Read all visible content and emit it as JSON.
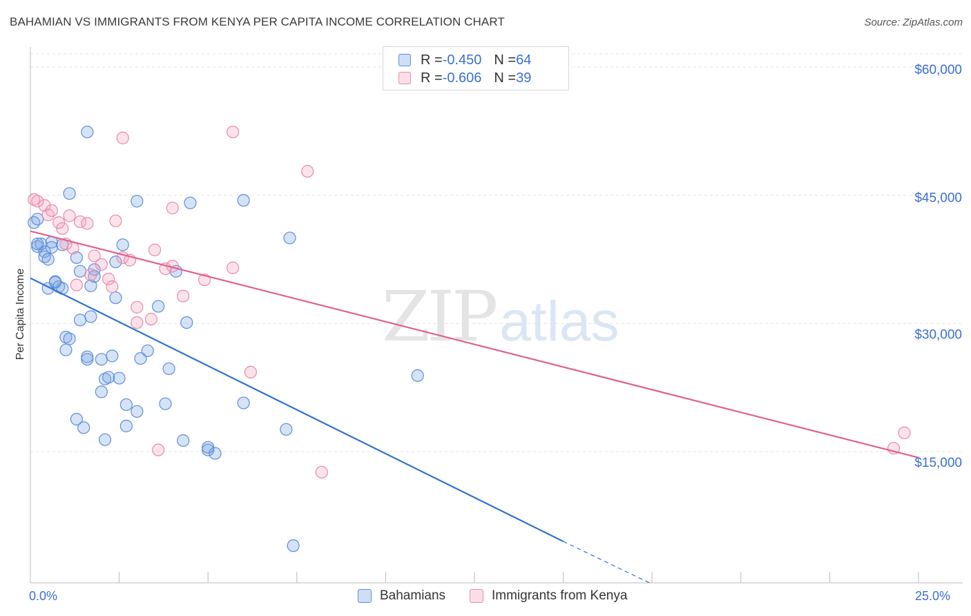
{
  "header": {
    "title": "BAHAMIAN VS IMMIGRANTS FROM KENYA PER CAPITA INCOME CORRELATION CHART",
    "source": "Source: ZipAtlas.com"
  },
  "watermark": {
    "zip": "ZIP",
    "atlas": "atlas"
  },
  "stats": [
    {
      "r_label": "R = ",
      "r_value": "-0.450",
      "n_label": "N = ",
      "n_value": "64"
    },
    {
      "r_label": "R = ",
      "r_value": "-0.606",
      "n_label": "N = ",
      "n_value": "39"
    }
  ],
  "legend": {
    "series0": "Bahamians",
    "series1": "Immigrants from Kenya"
  },
  "axis": {
    "x_min_label": "0.0%",
    "x_max_label": "25.0%"
  },
  "colors": {
    "blue": "#5b8fd8",
    "blue_fill": "rgba(120,160,225,0.30)",
    "blue_line": "#2f74d0",
    "pink": "#e88aa8",
    "pink_fill": "rgba(245,160,190,0.30)",
    "pink_line": "#e0608e",
    "tick_text": "#3a6fd0"
  },
  "chart_data": {
    "type": "scatter",
    "title": "BAHAMIAN VS IMMIGRANTS FROM KENYA PER CAPITA INCOME CORRELATION CHART",
    "xlabel": "",
    "ylabel": "Per Capita Income",
    "xlim": [
      0,
      25
    ],
    "ylim": [
      0,
      62000
    ],
    "y_ticks": [
      15000,
      30000,
      45000,
      60000
    ],
    "y_tick_labels": [
      "$15,000",
      "$30,000",
      "$45,000",
      "$60,000"
    ],
    "grid": true,
    "legend_position": "bottom",
    "series": [
      {
        "name": "Bahamians",
        "points": [
          [
            0.1,
            41800
          ],
          [
            0.2,
            42200
          ],
          [
            0.3,
            39300
          ],
          [
            0.2,
            39000
          ],
          [
            0.4,
            38400
          ],
          [
            0.4,
            37800
          ],
          [
            0.5,
            37500
          ],
          [
            0.6,
            39500
          ],
          [
            0.5,
            34100
          ],
          [
            0.7,
            34800
          ],
          [
            0.8,
            34300
          ],
          [
            0.9,
            34100
          ],
          [
            0.6,
            38900
          ],
          [
            0.9,
            39200
          ],
          [
            1.1,
            45200
          ],
          [
            1.6,
            52400
          ],
          [
            1.3,
            37700
          ],
          [
            1.4,
            36100
          ],
          [
            1.7,
            34400
          ],
          [
            1.8,
            36300
          ],
          [
            1.0,
            28400
          ],
          [
            1.1,
            28200
          ],
          [
            1.6,
            25800
          ],
          [
            1.6,
            26100
          ],
          [
            1.0,
            26900
          ],
          [
            1.4,
            30400
          ],
          [
            1.7,
            30800
          ],
          [
            2.0,
            25800
          ],
          [
            2.3,
            26200
          ],
          [
            2.1,
            23500
          ],
          [
            2.2,
            23700
          ],
          [
            2.5,
            23600
          ],
          [
            2.0,
            22000
          ],
          [
            2.7,
            20500
          ],
          [
            3.0,
            19700
          ],
          [
            1.3,
            18800
          ],
          [
            1.5,
            17800
          ],
          [
            2.7,
            18000
          ],
          [
            2.1,
            16400
          ],
          [
            2.4,
            33000
          ],
          [
            2.4,
            37200
          ],
          [
            2.6,
            39200
          ],
          [
            3.0,
            44300
          ],
          [
            3.1,
            25900
          ],
          [
            3.3,
            26800
          ],
          [
            3.6,
            32000
          ],
          [
            3.9,
            24700
          ],
          [
            3.8,
            20600
          ],
          [
            4.3,
            16300
          ],
          [
            4.4,
            30100
          ],
          [
            4.5,
            44100
          ],
          [
            5.0,
            15200
          ],
          [
            5.0,
            15500
          ],
          [
            5.2,
            14800
          ],
          [
            6.0,
            44400
          ],
          [
            6.0,
            20700
          ],
          [
            7.3,
            40000
          ],
          [
            7.2,
            17600
          ],
          [
            7.4,
            4000
          ],
          [
            10.9,
            23900
          ],
          [
            0.2,
            39300
          ],
          [
            0.7,
            34900
          ],
          [
            1.8,
            35500
          ],
          [
            4.1,
            36100
          ]
        ],
        "trend": {
          "x": [
            0,
            15
          ],
          "y": [
            35300,
            4500
          ],
          "dashed_extension_x": [
            15,
            17.5
          ],
          "dashed_extension_y": [
            4500,
            -500
          ]
        }
      },
      {
        "name": "Immigrants from Kenya",
        "points": [
          [
            0.1,
            44500
          ],
          [
            0.2,
            44300
          ],
          [
            0.4,
            43800
          ],
          [
            0.5,
            42700
          ],
          [
            0.6,
            43200
          ],
          [
            0.8,
            41800
          ],
          [
            0.9,
            41100
          ],
          [
            1.0,
            39300
          ],
          [
            1.2,
            38800
          ],
          [
            1.1,
            42600
          ],
          [
            1.4,
            41900
          ],
          [
            1.6,
            41700
          ],
          [
            1.3,
            34500
          ],
          [
            1.7,
            35700
          ],
          [
            1.8,
            37900
          ],
          [
            2.0,
            36900
          ],
          [
            2.2,
            35200
          ],
          [
            2.3,
            34300
          ],
          [
            2.4,
            42000
          ],
          [
            2.6,
            37700
          ],
          [
            2.8,
            37400
          ],
          [
            2.6,
            51700
          ],
          [
            3.0,
            30100
          ],
          [
            3.0,
            31900
          ],
          [
            3.4,
            30500
          ],
          [
            3.5,
            38600
          ],
          [
            3.8,
            36400
          ],
          [
            4.0,
            36700
          ],
          [
            4.0,
            43500
          ],
          [
            4.3,
            33200
          ],
          [
            4.9,
            35100
          ],
          [
            5.7,
            36500
          ],
          [
            5.7,
            52400
          ],
          [
            6.2,
            24300
          ],
          [
            7.8,
            47800
          ],
          [
            8.2,
            12600
          ],
          [
            3.6,
            15200
          ],
          [
            24.3,
            15400
          ],
          [
            24.6,
            17200
          ]
        ],
        "trend": {
          "x": [
            0,
            25
          ],
          "y": [
            40800,
            14300
          ]
        }
      }
    ]
  }
}
